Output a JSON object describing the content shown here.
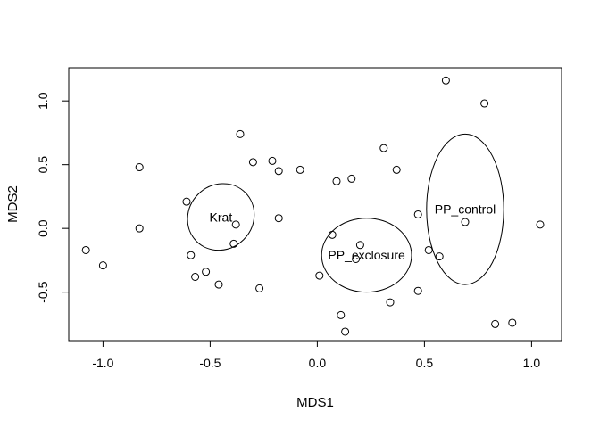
{
  "chart_data": {
    "type": "scatter",
    "xlabel": "MDS1",
    "ylabel": "MDS2",
    "xlim": [
      -1.16,
      1.14
    ],
    "ylim": [
      -0.88,
      1.26
    ],
    "x_ticks": [
      -1.0,
      -0.5,
      0.0,
      0.5,
      1.0
    ],
    "x_tick_labels": [
      "-1.0",
      "-0.5",
      "0.0",
      "0.5",
      "1.0"
    ],
    "y_ticks": [
      -0.5,
      0.0,
      0.5,
      1.0
    ],
    "y_tick_labels": [
      "-0.5",
      "0.0",
      "0.5",
      "1.0"
    ],
    "grid": false,
    "legend": "none",
    "points": [
      {
        "x": -1.08,
        "y": -0.17
      },
      {
        "x": -1.0,
        "y": -0.29
      },
      {
        "x": -0.83,
        "y": 0.48
      },
      {
        "x": -0.83,
        "y": 0.0
      },
      {
        "x": -0.61,
        "y": 0.21
      },
      {
        "x": -0.59,
        "y": -0.21
      },
      {
        "x": -0.57,
        "y": -0.38
      },
      {
        "x": -0.52,
        "y": -0.34
      },
      {
        "x": -0.46,
        "y": -0.44
      },
      {
        "x": -0.38,
        "y": 0.03
      },
      {
        "x": -0.39,
        "y": -0.12
      },
      {
        "x": -0.36,
        "y": 0.74
      },
      {
        "x": -0.3,
        "y": 0.52
      },
      {
        "x": -0.27,
        "y": -0.47
      },
      {
        "x": -0.21,
        "y": 0.53
      },
      {
        "x": -0.18,
        "y": 0.45
      },
      {
        "x": -0.18,
        "y": 0.08
      },
      {
        "x": -0.08,
        "y": 0.46
      },
      {
        "x": 0.01,
        "y": -0.37
      },
      {
        "x": 0.07,
        "y": -0.05
      },
      {
        "x": 0.09,
        "y": 0.37
      },
      {
        "x": 0.11,
        "y": -0.68
      },
      {
        "x": 0.13,
        "y": -0.81
      },
      {
        "x": 0.16,
        "y": 0.39
      },
      {
        "x": 0.18,
        "y": -0.24
      },
      {
        "x": 0.2,
        "y": -0.13
      },
      {
        "x": 0.31,
        "y": 0.63
      },
      {
        "x": 0.34,
        "y": -0.58
      },
      {
        "x": 0.37,
        "y": 0.46
      },
      {
        "x": 0.47,
        "y": 0.11
      },
      {
        "x": 0.47,
        "y": -0.49
      },
      {
        "x": 0.52,
        "y": -0.17
      },
      {
        "x": 0.57,
        "y": -0.22
      },
      {
        "x": 0.6,
        "y": 1.16
      },
      {
        "x": 0.69,
        "y": 0.05
      },
      {
        "x": 0.78,
        "y": 0.98
      },
      {
        "x": 0.83,
        "y": -0.75
      },
      {
        "x": 0.91,
        "y": -0.74
      },
      {
        "x": 1.04,
        "y": 0.03
      }
    ],
    "groups": [
      {
        "label": "Krat",
        "center": [
          -0.45,
          0.09
        ],
        "rx": 0.15,
        "ry": 0.27,
        "angle_deg": 45
      },
      {
        "label": "PP_exclosure",
        "center": [
          0.23,
          -0.21
        ],
        "rx": 0.21,
        "ry": 0.29,
        "angle_deg": 0
      },
      {
        "label": "PP_control",
        "center": [
          0.69,
          0.15
        ],
        "rx": 0.18,
        "ry": 0.59,
        "angle_deg": 0
      }
    ]
  }
}
